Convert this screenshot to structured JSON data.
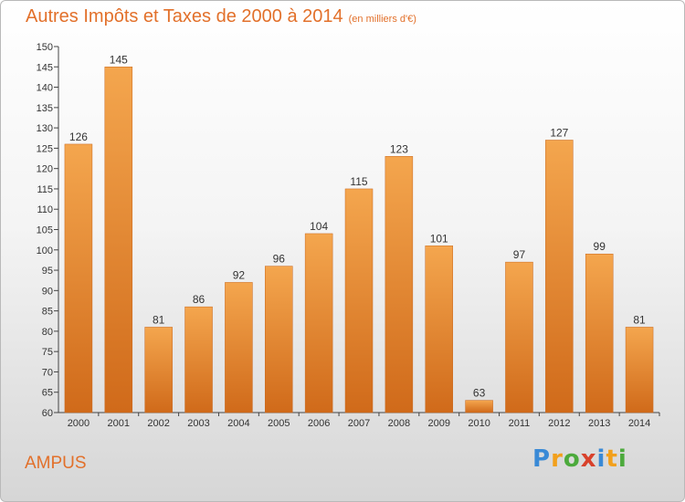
{
  "header": {
    "title": "Autres Impôts et Taxes de 2000 à 2014",
    "unit": "(en milliers d'€)"
  },
  "footer": {
    "commune": "AMPUS",
    "logo": [
      "P",
      "r",
      "o",
      "x",
      "i",
      "t",
      "i"
    ],
    "logo_colors": [
      "#3a8ad6",
      "#f2a01c",
      "#4caa3c",
      "#d8412b",
      "#3a8ad6",
      "#f2a01c",
      "#4caa3c"
    ]
  },
  "colors": {
    "bar_light": "#f4a64e",
    "bar_dark": "#d06a1a",
    "title": "#e2702a",
    "axis": "#444444"
  },
  "chart_data": {
    "type": "bar",
    "categories": [
      "2000",
      "2001",
      "2002",
      "2003",
      "2004",
      "2005",
      "2006",
      "2007",
      "2008",
      "2009",
      "2010",
      "2011",
      "2012",
      "2013",
      "2014"
    ],
    "values": [
      126,
      145,
      81,
      86,
      92,
      96,
      104,
      115,
      123,
      101,
      63,
      97,
      127,
      99,
      81
    ],
    "ylim": [
      60,
      150
    ],
    "ytick_step": 5,
    "grid": false
  }
}
